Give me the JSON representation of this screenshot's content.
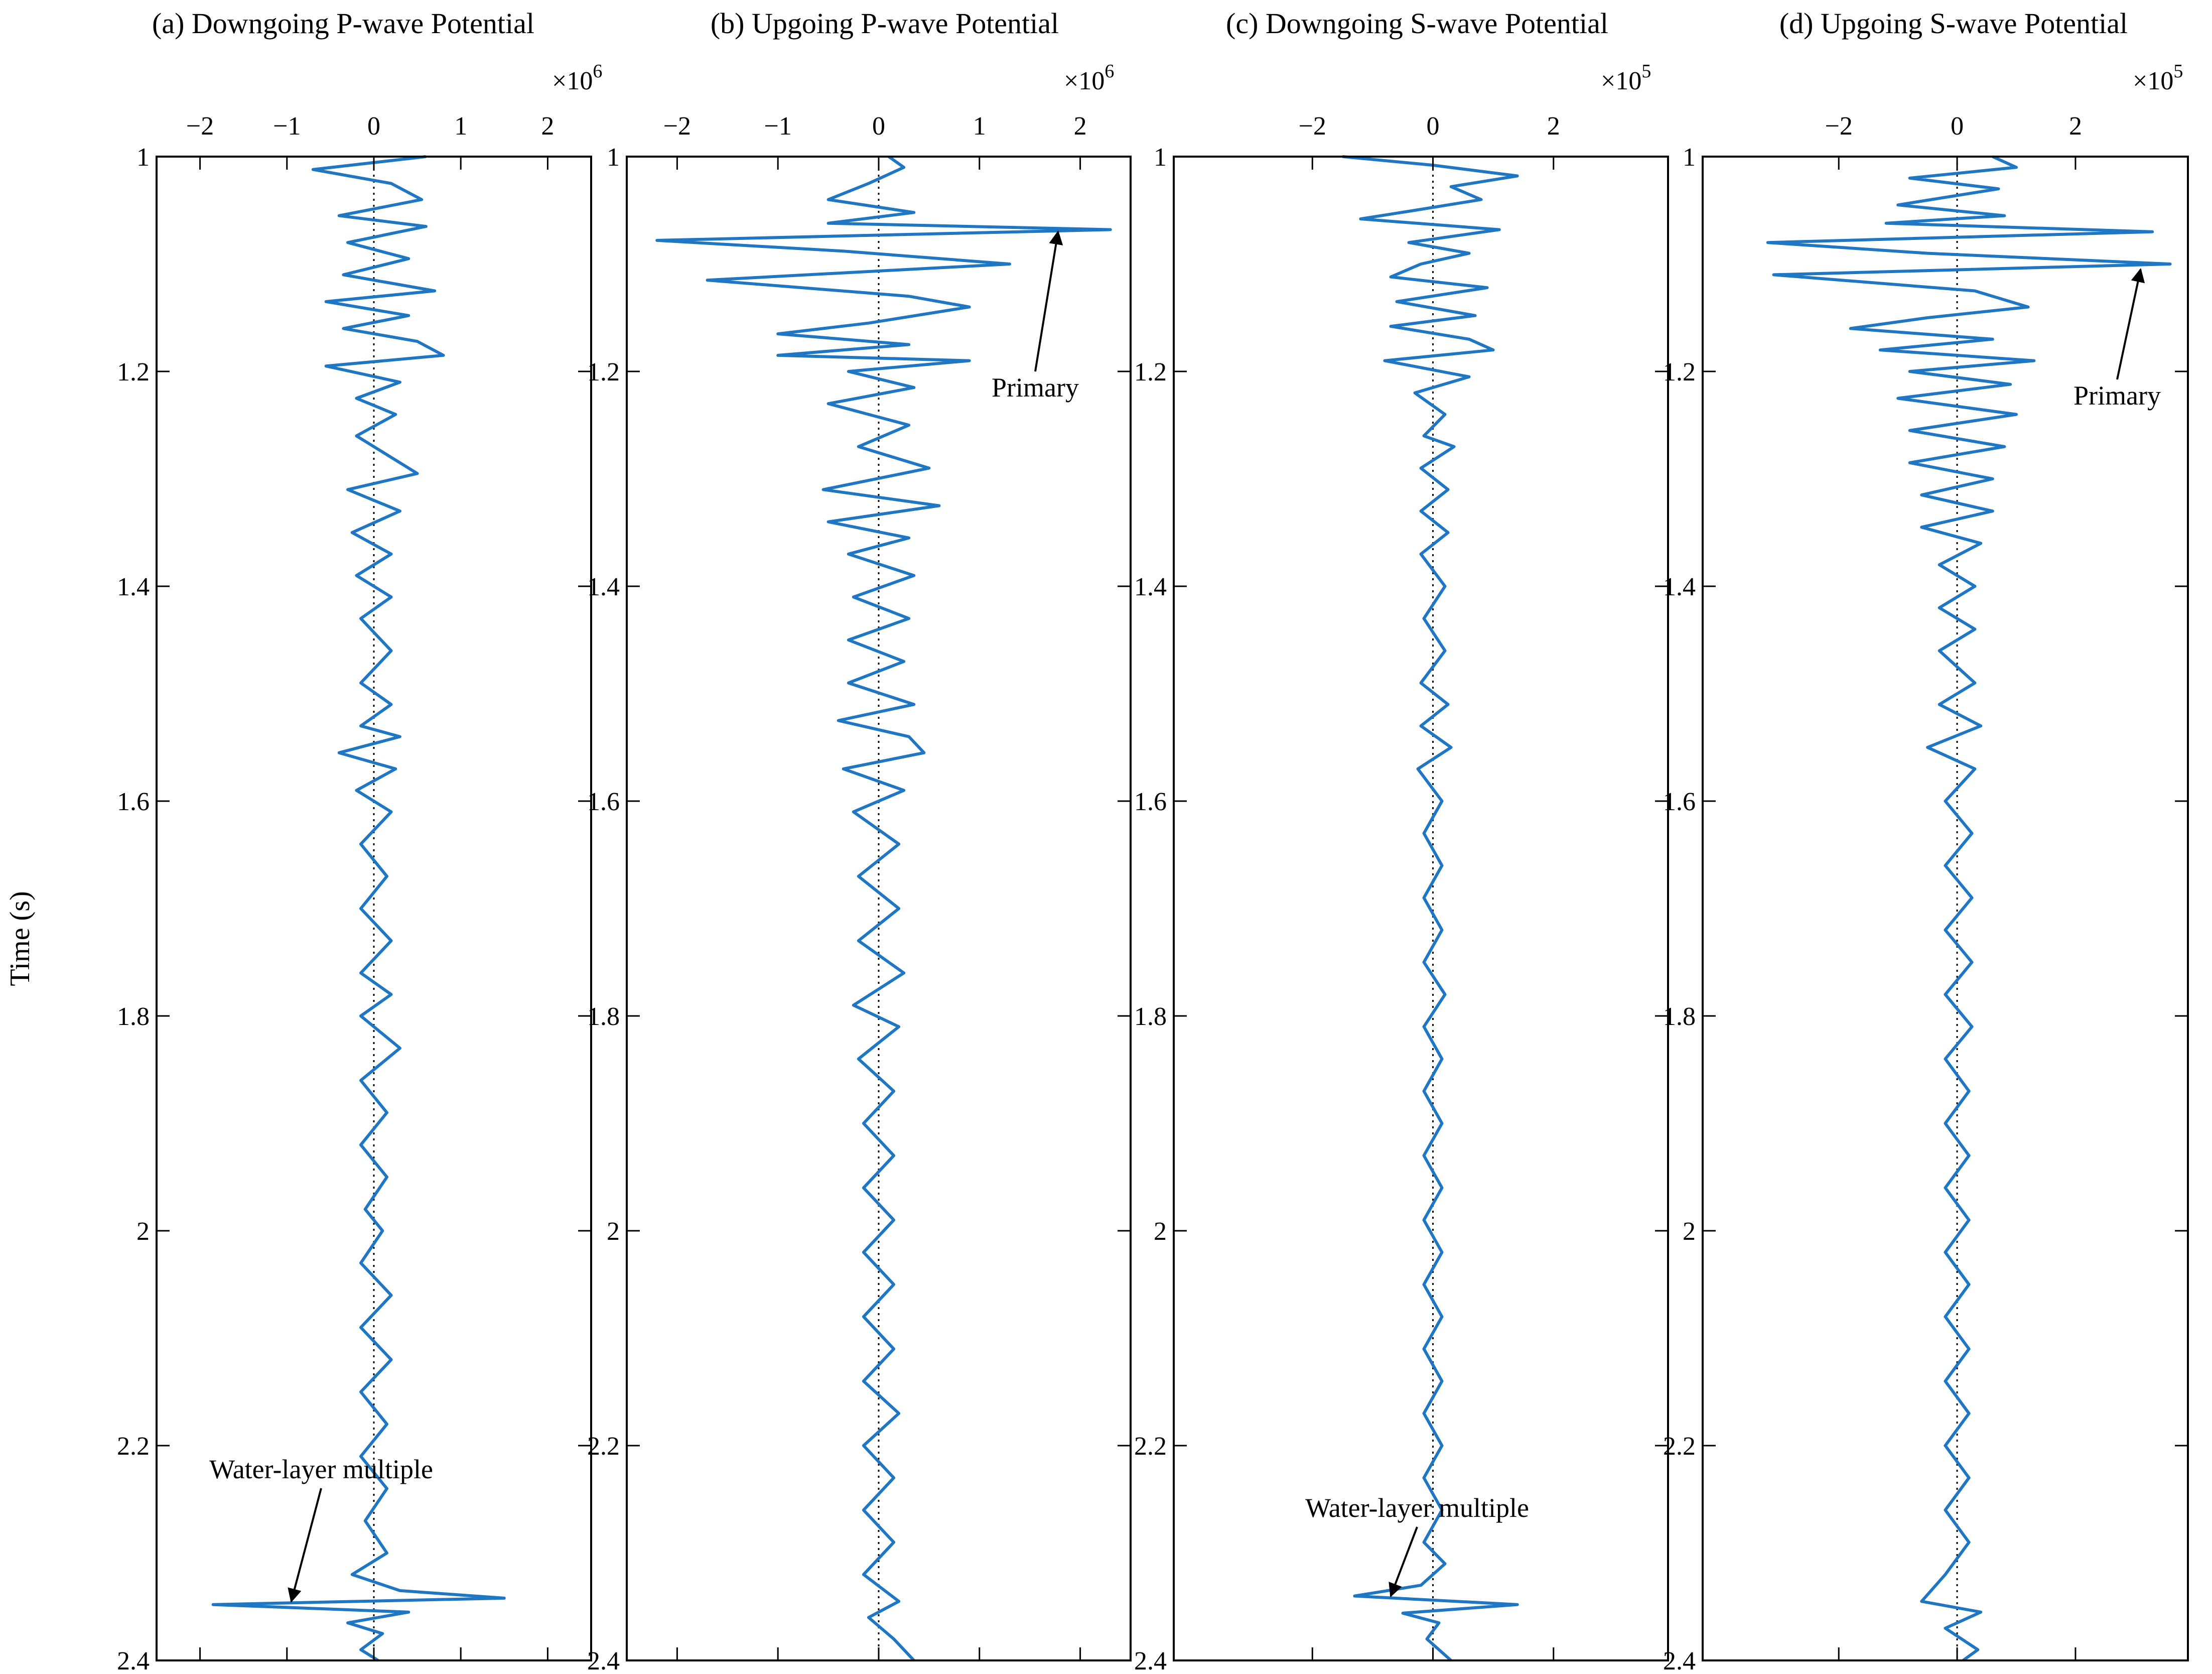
{
  "chart_data": [
    {
      "type": "line",
      "title": "(a) Downgoing P-wave Potential",
      "xlabel": "",
      "ylabel": "Time (s)",
      "x_multiplier": "×10",
      "x_multiplier_exp": "6",
      "xlim": [
        -2.5,
        2.5
      ],
      "ylim": [
        1,
        2.4
      ],
      "xticks": [
        -2,
        -1,
        0,
        1,
        2
      ],
      "xtick_labels": [
        "−2",
        "−1",
        "0",
        "1",
        "2"
      ],
      "yticks": [
        1,
        1.2,
        1.4,
        1.6,
        1.8,
        2,
        2.2,
        2.4
      ],
      "ytick_labels": [
        "1",
        "1.2",
        "1.4",
        "1.6",
        "1.8",
        "2",
        "2.2",
        "2.4"
      ],
      "series_color": "#1f77c4",
      "trace": [
        [
          1.0,
          0.6
        ],
        [
          1.012,
          -0.7
        ],
        [
          1.025,
          0.2
        ],
        [
          1.04,
          0.55
        ],
        [
          1.055,
          -0.4
        ],
        [
          1.065,
          0.6
        ],
        [
          1.08,
          -0.3
        ],
        [
          1.095,
          0.4
        ],
        [
          1.11,
          -0.35
        ],
        [
          1.125,
          0.7
        ],
        [
          1.135,
          -0.55
        ],
        [
          1.148,
          0.4
        ],
        [
          1.16,
          -0.35
        ],
        [
          1.172,
          0.5
        ],
        [
          1.185,
          0.8
        ],
        [
          1.195,
          -0.55
        ],
        [
          1.21,
          0.3
        ],
        [
          1.225,
          -0.2
        ],
        [
          1.24,
          0.25
        ],
        [
          1.26,
          -0.2
        ],
        [
          1.28,
          0.2
        ],
        [
          1.295,
          0.5
        ],
        [
          1.31,
          -0.3
        ],
        [
          1.33,
          0.3
        ],
        [
          1.35,
          -0.25
        ],
        [
          1.37,
          0.2
        ],
        [
          1.39,
          -0.2
        ],
        [
          1.41,
          0.2
        ],
        [
          1.43,
          -0.15
        ],
        [
          1.46,
          0.2
        ],
        [
          1.49,
          -0.15
        ],
        [
          1.51,
          0.2
        ],
        [
          1.53,
          -0.15
        ],
        [
          1.54,
          0.3
        ],
        [
          1.555,
          -0.4
        ],
        [
          1.57,
          0.25
        ],
        [
          1.59,
          -0.2
        ],
        [
          1.61,
          0.2
        ],
        [
          1.64,
          -0.15
        ],
        [
          1.67,
          0.15
        ],
        [
          1.7,
          -0.15
        ],
        [
          1.73,
          0.2
        ],
        [
          1.76,
          -0.15
        ],
        [
          1.78,
          0.2
        ],
        [
          1.8,
          -0.15
        ],
        [
          1.83,
          0.3
        ],
        [
          1.86,
          -0.15
        ],
        [
          1.89,
          0.15
        ],
        [
          1.92,
          -0.15
        ],
        [
          1.95,
          0.15
        ],
        [
          1.98,
          -0.1
        ],
        [
          2.0,
          0.1
        ],
        [
          2.03,
          -0.15
        ],
        [
          2.06,
          0.2
        ],
        [
          2.09,
          -0.15
        ],
        [
          2.12,
          0.2
        ],
        [
          2.15,
          -0.15
        ],
        [
          2.18,
          0.15
        ],
        [
          2.21,
          -0.15
        ],
        [
          2.24,
          0.15
        ],
        [
          2.27,
          -0.1
        ],
        [
          2.3,
          0.15
        ],
        [
          2.32,
          -0.25
        ],
        [
          2.335,
          0.3
        ],
        [
          2.342,
          1.5
        ],
        [
          2.348,
          -1.85
        ],
        [
          2.355,
          0.4
        ],
        [
          2.365,
          -0.3
        ],
        [
          2.375,
          0.1
        ],
        [
          2.39,
          -0.15
        ],
        [
          2.4,
          0.05
        ]
      ],
      "annotation": {
        "text": "Water-layer multiple",
        "x": -0.95,
        "y": 2.345
      }
    },
    {
      "type": "line",
      "title": "(b) Upgoing P-wave Potential",
      "xlabel": "",
      "ylabel": "",
      "x_multiplier": "×10",
      "x_multiplier_exp": "6",
      "xlim": [
        -2.5,
        2.5
      ],
      "ylim": [
        1,
        2.4
      ],
      "xticks": [
        -2,
        -1,
        0,
        1,
        2
      ],
      "xtick_labels": [
        "−2",
        "−1",
        "0",
        "1",
        "2"
      ],
      "yticks": [
        1,
        1.2,
        1.4,
        1.6,
        1.8,
        2,
        2.2,
        2.4
      ],
      "ytick_labels": [
        "1",
        "1.2",
        "1.4",
        "1.6",
        "1.8",
        "2",
        "2.2",
        "2.4"
      ],
      "series_color": "#1f77c4",
      "trace": [
        [
          1.0,
          0.1
        ],
        [
          1.01,
          0.25
        ],
        [
          1.025,
          -0.1
        ],
        [
          1.04,
          -0.5
        ],
        [
          1.052,
          0.35
        ],
        [
          1.062,
          -0.5
        ],
        [
          1.068,
          2.3
        ],
        [
          1.078,
          -2.2
        ],
        [
          1.088,
          -0.35
        ],
        [
          1.1,
          1.3
        ],
        [
          1.115,
          -1.7
        ],
        [
          1.13,
          0.3
        ],
        [
          1.14,
          0.9
        ],
        [
          1.155,
          -0.1
        ],
        [
          1.165,
          -1.0
        ],
        [
          1.175,
          0.3
        ],
        [
          1.185,
          -1.0
        ],
        [
          1.19,
          0.9
        ],
        [
          1.2,
          -0.3
        ],
        [
          1.215,
          0.35
        ],
        [
          1.23,
          -0.5
        ],
        [
          1.25,
          0.3
        ],
        [
          1.27,
          -0.2
        ],
        [
          1.29,
          0.5
        ],
        [
          1.31,
          -0.55
        ],
        [
          1.325,
          0.6
        ],
        [
          1.34,
          -0.5
        ],
        [
          1.355,
          0.3
        ],
        [
          1.37,
          -0.3
        ],
        [
          1.39,
          0.35
        ],
        [
          1.41,
          -0.25
        ],
        [
          1.43,
          0.3
        ],
        [
          1.45,
          -0.3
        ],
        [
          1.47,
          0.25
        ],
        [
          1.49,
          -0.3
        ],
        [
          1.51,
          0.35
        ],
        [
          1.525,
          -0.4
        ],
        [
          1.54,
          0.3
        ],
        [
          1.555,
          0.45
        ],
        [
          1.57,
          -0.35
        ],
        [
          1.59,
          0.25
        ],
        [
          1.61,
          -0.25
        ],
        [
          1.64,
          0.2
        ],
        [
          1.67,
          -0.2
        ],
        [
          1.7,
          0.2
        ],
        [
          1.73,
          -0.2
        ],
        [
          1.76,
          0.25
        ],
        [
          1.79,
          -0.25
        ],
        [
          1.81,
          0.2
        ],
        [
          1.84,
          -0.2
        ],
        [
          1.87,
          0.15
        ],
        [
          1.9,
          -0.15
        ],
        [
          1.93,
          0.15
        ],
        [
          1.96,
          -0.15
        ],
        [
          1.99,
          0.15
        ],
        [
          2.02,
          -0.15
        ],
        [
          2.05,
          0.15
        ],
        [
          2.08,
          -0.15
        ],
        [
          2.11,
          0.15
        ],
        [
          2.14,
          -0.15
        ],
        [
          2.17,
          0.2
        ],
        [
          2.2,
          -0.15
        ],
        [
          2.23,
          0.15
        ],
        [
          2.26,
          -0.15
        ],
        [
          2.29,
          0.15
        ],
        [
          2.32,
          -0.15
        ],
        [
          2.345,
          0.2
        ],
        [
          2.36,
          -0.1
        ],
        [
          2.38,
          0.15
        ],
        [
          2.4,
          0.35
        ]
      ],
      "annotation": {
        "text": "Primary",
        "x": 1.78,
        "y": 1.07
      }
    },
    {
      "type": "line",
      "title": "(c) Downgoing S-wave Potential",
      "xlabel": "",
      "ylabel": "",
      "x_multiplier": "×10",
      "x_multiplier_exp": "5",
      "xlim": [
        -4.3,
        3.9
      ],
      "ylim": [
        1,
        2.4
      ],
      "xticks": [
        -2,
        0,
        2
      ],
      "xtick_labels": [
        "−2",
        "0",
        "2"
      ],
      "yticks": [
        1,
        1.2,
        1.4,
        1.6,
        1.8,
        2,
        2.2,
        2.4
      ],
      "ytick_labels": [
        "1",
        "1.2",
        "1.4",
        "1.6",
        "1.8",
        "2",
        "2.2",
        "2.4"
      ],
      "series_color": "#1f77c4",
      "trace": [
        [
          1.0,
          -1.5
        ],
        [
          1.008,
          0.0
        ],
        [
          1.018,
          1.4
        ],
        [
          1.028,
          0.3
        ],
        [
          1.04,
          0.8
        ],
        [
          1.05,
          -0.3
        ],
        [
          1.058,
          -1.2
        ],
        [
          1.068,
          1.1
        ],
        [
          1.08,
          -0.4
        ],
        [
          1.09,
          0.6
        ],
        [
          1.1,
          -0.2
        ],
        [
          1.112,
          -0.7
        ],
        [
          1.122,
          0.9
        ],
        [
          1.135,
          -0.6
        ],
        [
          1.148,
          0.7
        ],
        [
          1.158,
          -0.7
        ],
        [
          1.17,
          0.6
        ],
        [
          1.18,
          1.0
        ],
        [
          1.19,
          -0.8
        ],
        [
          1.205,
          0.6
        ],
        [
          1.22,
          -0.3
        ],
        [
          1.24,
          0.2
        ],
        [
          1.26,
          -0.15
        ],
        [
          1.27,
          0.35
        ],
        [
          1.29,
          -0.2
        ],
        [
          1.31,
          0.25
        ],
        [
          1.33,
          -0.2
        ],
        [
          1.35,
          0.25
        ],
        [
          1.37,
          -0.2
        ],
        [
          1.4,
          0.2
        ],
        [
          1.43,
          -0.15
        ],
        [
          1.46,
          0.2
        ],
        [
          1.49,
          -0.2
        ],
        [
          1.51,
          0.25
        ],
        [
          1.53,
          -0.2
        ],
        [
          1.55,
          0.3
        ],
        [
          1.57,
          -0.25
        ],
        [
          1.6,
          0.15
        ],
        [
          1.63,
          -0.15
        ],
        [
          1.66,
          0.15
        ],
        [
          1.69,
          -0.15
        ],
        [
          1.72,
          0.15
        ],
        [
          1.75,
          -0.15
        ],
        [
          1.78,
          0.2
        ],
        [
          1.81,
          -0.15
        ],
        [
          1.84,
          0.15
        ],
        [
          1.87,
          -0.15
        ],
        [
          1.9,
          0.15
        ],
        [
          1.93,
          -0.15
        ],
        [
          1.96,
          0.15
        ],
        [
          1.99,
          -0.15
        ],
        [
          2.02,
          0.15
        ],
        [
          2.05,
          -0.15
        ],
        [
          2.08,
          0.15
        ],
        [
          2.11,
          -0.15
        ],
        [
          2.14,
          0.15
        ],
        [
          2.17,
          -0.15
        ],
        [
          2.2,
          0.15
        ],
        [
          2.23,
          -0.15
        ],
        [
          2.26,
          0.15
        ],
        [
          2.29,
          -0.15
        ],
        [
          2.31,
          0.2
        ],
        [
          2.33,
          -0.2
        ],
        [
          2.34,
          -1.3
        ],
        [
          2.348,
          1.4
        ],
        [
          2.356,
          -0.5
        ],
        [
          2.365,
          0.1
        ],
        [
          2.38,
          -0.1
        ],
        [
          2.4,
          0.3
        ]
      ],
      "annotation": {
        "text": "Water-layer multiple",
        "x": -0.7,
        "y": 2.34
      }
    },
    {
      "type": "line",
      "title": "(d) Upgoing S-wave Potential",
      "xlabel": "",
      "ylabel": "",
      "x_multiplier": "×10",
      "x_multiplier_exp": "5",
      "xlim": [
        -4.3,
        3.9
      ],
      "ylim": [
        1,
        2.4
      ],
      "xticks": [
        -2,
        0,
        2
      ],
      "xtick_labels": [
        "−2",
        "0",
        "2"
      ],
      "yticks": [
        1,
        1.2,
        1.4,
        1.6,
        1.8,
        2,
        2.2,
        2.4
      ],
      "ytick_labels": [
        "1",
        "1.2",
        "1.4",
        "1.6",
        "1.8",
        "2",
        "2.2",
        "2.4"
      ],
      "series_color": "#1f77c4",
      "trace": [
        [
          1.0,
          0.6
        ],
        [
          1.01,
          1.0
        ],
        [
          1.02,
          -0.8
        ],
        [
          1.03,
          0.7
        ],
        [
          1.045,
          -1.0
        ],
        [
          1.055,
          0.8
        ],
        [
          1.062,
          -1.2
        ],
        [
          1.07,
          3.3
        ],
        [
          1.08,
          -3.2
        ],
        [
          1.09,
          -0.5
        ],
        [
          1.1,
          3.6
        ],
        [
          1.11,
          -3.1
        ],
        [
          1.125,
          0.3
        ],
        [
          1.14,
          1.2
        ],
        [
          1.15,
          -0.5
        ],
        [
          1.16,
          -1.8
        ],
        [
          1.17,
          0.6
        ],
        [
          1.18,
          -1.3
        ],
        [
          1.19,
          1.3
        ],
        [
          1.2,
          -0.8
        ],
        [
          1.212,
          0.9
        ],
        [
          1.225,
          -1.0
        ],
        [
          1.24,
          1.0
        ],
        [
          1.255,
          -0.8
        ],
        [
          1.27,
          0.8
        ],
        [
          1.285,
          -0.8
        ],
        [
          1.3,
          0.6
        ],
        [
          1.315,
          -0.6
        ],
        [
          1.33,
          0.6
        ],
        [
          1.345,
          -0.6
        ],
        [
          1.36,
          0.4
        ],
        [
          1.38,
          -0.3
        ],
        [
          1.4,
          0.3
        ],
        [
          1.42,
          -0.3
        ],
        [
          1.44,
          0.3
        ],
        [
          1.46,
          -0.3
        ],
        [
          1.49,
          0.3
        ],
        [
          1.51,
          -0.3
        ],
        [
          1.53,
          0.4
        ],
        [
          1.55,
          -0.5
        ],
        [
          1.57,
          0.3
        ],
        [
          1.6,
          -0.2
        ],
        [
          1.63,
          0.25
        ],
        [
          1.66,
          -0.2
        ],
        [
          1.69,
          0.25
        ],
        [
          1.72,
          -0.2
        ],
        [
          1.75,
          0.25
        ],
        [
          1.78,
          -0.2
        ],
        [
          1.81,
          0.25
        ],
        [
          1.84,
          -0.2
        ],
        [
          1.87,
          0.2
        ],
        [
          1.9,
          -0.2
        ],
        [
          1.93,
          0.2
        ],
        [
          1.96,
          -0.2
        ],
        [
          1.99,
          0.2
        ],
        [
          2.02,
          -0.2
        ],
        [
          2.05,
          0.2
        ],
        [
          2.08,
          -0.2
        ],
        [
          2.11,
          0.2
        ],
        [
          2.14,
          -0.2
        ],
        [
          2.17,
          0.2
        ],
        [
          2.2,
          -0.2
        ],
        [
          2.23,
          0.2
        ],
        [
          2.26,
          -0.2
        ],
        [
          2.29,
          0.2
        ],
        [
          2.32,
          -0.2
        ],
        [
          2.345,
          -0.6
        ],
        [
          2.355,
          0.4
        ],
        [
          2.37,
          -0.2
        ],
        [
          2.39,
          0.35
        ],
        [
          2.4,
          0.1
        ]
      ],
      "annotation": {
        "text": "Primary",
        "x": 3.1,
        "y": 1.105
      }
    }
  ]
}
